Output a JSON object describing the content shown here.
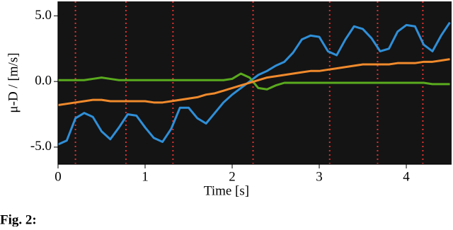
{
  "chart_data": {
    "type": "line",
    "xlabel": "Time [s]",
    "ylabel": "μ-D / [m/s]",
    "caption": "Fig. 2:",
    "xlim": [
      0,
      4.52
    ],
    "ylim": [
      -6.3,
      6.1
    ],
    "xticks": [
      0,
      1,
      2,
      3,
      4
    ],
    "yticks": [
      {
        "value": 5,
        "label": "5.0"
      },
      {
        "value": 0,
        "label": "0.0"
      },
      {
        "value": -5,
        "label": "-5.0"
      }
    ],
    "vlines": [
      0.2,
      0.78,
      1.32,
      2.24,
      3.12,
      3.67,
      4.19
    ],
    "vline_color": "#e03030",
    "background": "#141414",
    "x": [
      0,
      0.1,
      0.2,
      0.3,
      0.4,
      0.5,
      0.6,
      0.7,
      0.8,
      0.9,
      1,
      1.1,
      1.2,
      1.3,
      1.4,
      1.5,
      1.6,
      1.7,
      1.8,
      1.9,
      2,
      2.1,
      2.2,
      2.3,
      2.4,
      2.5,
      2.6,
      2.7,
      2.8,
      2.9,
      3,
      3.1,
      3.2,
      3.3,
      3.4,
      3.5,
      3.6,
      3.7,
      3.8,
      3.9,
      4,
      4.1,
      4.2,
      4.3,
      4.4,
      4.5
    ],
    "series": [
      {
        "color": "#2f8fd8",
        "values": [
          -4.8,
          -4.5,
          -2.8,
          -2.4,
          -2.7,
          -3.8,
          -4.4,
          -3.5,
          -2.5,
          -2.6,
          -3.5,
          -4.3,
          -4.6,
          -3.6,
          -2.0,
          -2.0,
          -2.8,
          -3.2,
          -2.4,
          -1.6,
          -1.0,
          -0.5,
          0.0,
          0.5,
          0.8,
          1.2,
          1.5,
          2.2,
          3.2,
          3.5,
          3.4,
          2.3,
          2.0,
          3.2,
          4.2,
          4.0,
          3.3,
          2.3,
          2.5,
          3.8,
          4.3,
          4.2,
          2.8,
          2.3,
          3.5,
          4.5
        ]
      },
      {
        "color": "#5aab1e",
        "values": [
          0.1,
          0.1,
          0.1,
          0.1,
          0.2,
          0.3,
          0.2,
          0.1,
          0.1,
          0.1,
          0.1,
          0.1,
          0.1,
          0.1,
          0.1,
          0.1,
          0.1,
          0.1,
          0.1,
          0.1,
          0.2,
          0.6,
          0.3,
          -0.5,
          -0.6,
          -0.3,
          -0.1,
          -0.1,
          -0.1,
          -0.1,
          -0.1,
          -0.1,
          -0.1,
          -0.1,
          -0.1,
          -0.1,
          -0.1,
          -0.1,
          -0.1,
          -0.1,
          -0.1,
          -0.1,
          -0.1,
          -0.2,
          -0.2,
          -0.2
        ]
      },
      {
        "color": "#f08a2c",
        "values": [
          -1.8,
          -1.7,
          -1.6,
          -1.5,
          -1.4,
          -1.4,
          -1.5,
          -1.5,
          -1.5,
          -1.5,
          -1.5,
          -1.6,
          -1.6,
          -1.5,
          -1.4,
          -1.3,
          -1.2,
          -1.0,
          -0.9,
          -0.7,
          -0.5,
          -0.3,
          -0.1,
          0.1,
          0.3,
          0.4,
          0.5,
          0.6,
          0.7,
          0.8,
          0.8,
          0.9,
          1.0,
          1.1,
          1.2,
          1.3,
          1.3,
          1.3,
          1.3,
          1.4,
          1.4,
          1.4,
          1.5,
          1.5,
          1.6,
          1.7
        ]
      }
    ]
  }
}
